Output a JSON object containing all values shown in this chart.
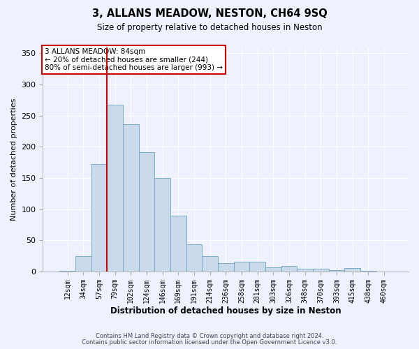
{
  "title": "3, ALLANS MEADOW, NESTON, CH64 9SQ",
  "subtitle": "Size of property relative to detached houses in Neston",
  "xlabel": "Distribution of detached houses by size in Neston",
  "ylabel": "Number of detached properties",
  "bar_color": "#c9daea",
  "bar_edge_color": "#7aaac8",
  "background_color": "#eef2ff",
  "grid_color": "#ffffff",
  "vline_color": "#cc0000",
  "vline_x": 2.5,
  "annotation_line1": "3 ALLANS MEADOW: 84sqm",
  "annotation_line2": "← 20% of detached houses are smaller (244)",
  "annotation_line3": "80% of semi-detached houses are larger (993) →",
  "footer1": "Contains HM Land Registry data © Crown copyright and database right 2024.",
  "footer2": "Contains public sector information licensed under the Open Government Licence v3.0.",
  "categories": [
    "12sqm",
    "34sqm",
    "57sqm",
    "79sqm",
    "102sqm",
    "124sqm",
    "146sqm",
    "169sqm",
    "191sqm",
    "214sqm",
    "236sqm",
    "258sqm",
    "281sqm",
    "303sqm",
    "326sqm",
    "348sqm",
    "370sqm",
    "393sqm",
    "415sqm",
    "438sqm",
    "460sqm"
  ],
  "values": [
    1,
    25,
    172,
    268,
    236,
    191,
    150,
    90,
    44,
    25,
    13,
    16,
    16,
    7,
    9,
    5,
    5,
    2,
    6,
    1,
    0
  ],
  "ylim": [
    0,
    360
  ],
  "yticks": [
    0,
    50,
    100,
    150,
    200,
    250,
    300,
    350
  ]
}
